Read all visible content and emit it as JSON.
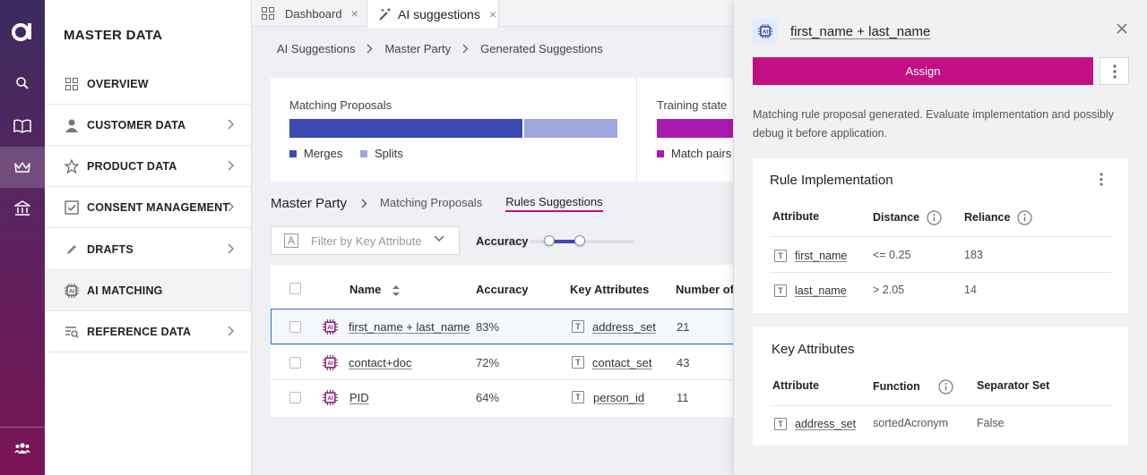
{
  "rail": {
    "items": [
      "search-icon",
      "book-icon",
      "crown-icon",
      "bank-icon",
      "users-icon"
    ]
  },
  "menu": {
    "title": "MASTER DATA",
    "items": [
      {
        "label": "OVERVIEW",
        "icon": "grid-icon",
        "chevron": false
      },
      {
        "label": "CUSTOMER DATA",
        "icon": "person-icon",
        "chevron": true
      },
      {
        "label": "PRODUCT DATA",
        "icon": "star-icon",
        "chevron": true
      },
      {
        "label": "CONSENT MANAGEMENT",
        "icon": "checkbox-icon",
        "chevron": true
      },
      {
        "label": "DRAFTS",
        "icon": "pencil-icon",
        "chevron": true
      },
      {
        "label": "AI MATCHING",
        "icon": "ai-chip-icon",
        "chevron": false,
        "active": true
      },
      {
        "label": "REFERENCE DATA",
        "icon": "reference-icon",
        "chevron": true
      }
    ]
  },
  "tabs": [
    {
      "label": "Dashboard",
      "icon": "grid-icon",
      "close": "×"
    },
    {
      "label": "AI suggestions",
      "icon": "magic-wand-icon",
      "close": "×",
      "active": true
    }
  ],
  "breadcrumb": [
    "AI Suggestions",
    "Master Party",
    "Generated Suggestions"
  ],
  "stats": {
    "matching": {
      "title": "Matching Proposals",
      "merges_fraction": 0.71,
      "legend": [
        "Merges",
        "Splits"
      ]
    },
    "training": {
      "title": "Training state",
      "legend": [
        "Match pairs"
      ]
    },
    "colors": {
      "merges": "#3b48b0",
      "splits": "#9fa6de",
      "match_pairs": "#a81bb0"
    }
  },
  "subnav": {
    "heading": "Master Party",
    "tabs": [
      "Matching Proposals",
      "Rules Suggestions"
    ],
    "active": "Rules Suggestions"
  },
  "filter": {
    "placeholder": "Filter by Key Attribute"
  },
  "accuracy_label": "Accuracy",
  "accuracy_range": [
    0.2,
    0.5
  ],
  "table": {
    "headers": [
      "Name",
      "Accuracy",
      "Key Attributes",
      "Number of"
    ],
    "rows": [
      {
        "name": "first_name + last_name",
        "accuracy": "83%",
        "key": "address_set",
        "number": "21",
        "selected": true
      },
      {
        "name": "contact+doc",
        "accuracy": "72%",
        "key": "contact_set",
        "number": "43"
      },
      {
        "name": "PID",
        "accuracy": "64%",
        "key": "person_id",
        "number": "11"
      }
    ]
  },
  "panel": {
    "title": "first_name + last_name",
    "close": "×",
    "assign_label": "Assign",
    "description": "Matching rule proposal generated. Evaluate implementation and possibly debug it before application.",
    "rule_impl": {
      "title": "Rule Implementation",
      "headers": [
        "Attribute",
        "Distance",
        "Reliance"
      ],
      "rows": [
        {
          "attr": "first_name",
          "distance": "<= 0.25",
          "reliance": "183"
        },
        {
          "attr": "last_name",
          "distance": "> 2.05",
          "reliance": "14"
        }
      ]
    },
    "key_attrs": {
      "title": "Key Attributes",
      "headers": [
        "Attribute",
        "Function",
        "Separator Set"
      ],
      "rows": [
        {
          "attr": "address_set",
          "function": "sortedAcronym",
          "separator": "False"
        }
      ]
    }
  }
}
